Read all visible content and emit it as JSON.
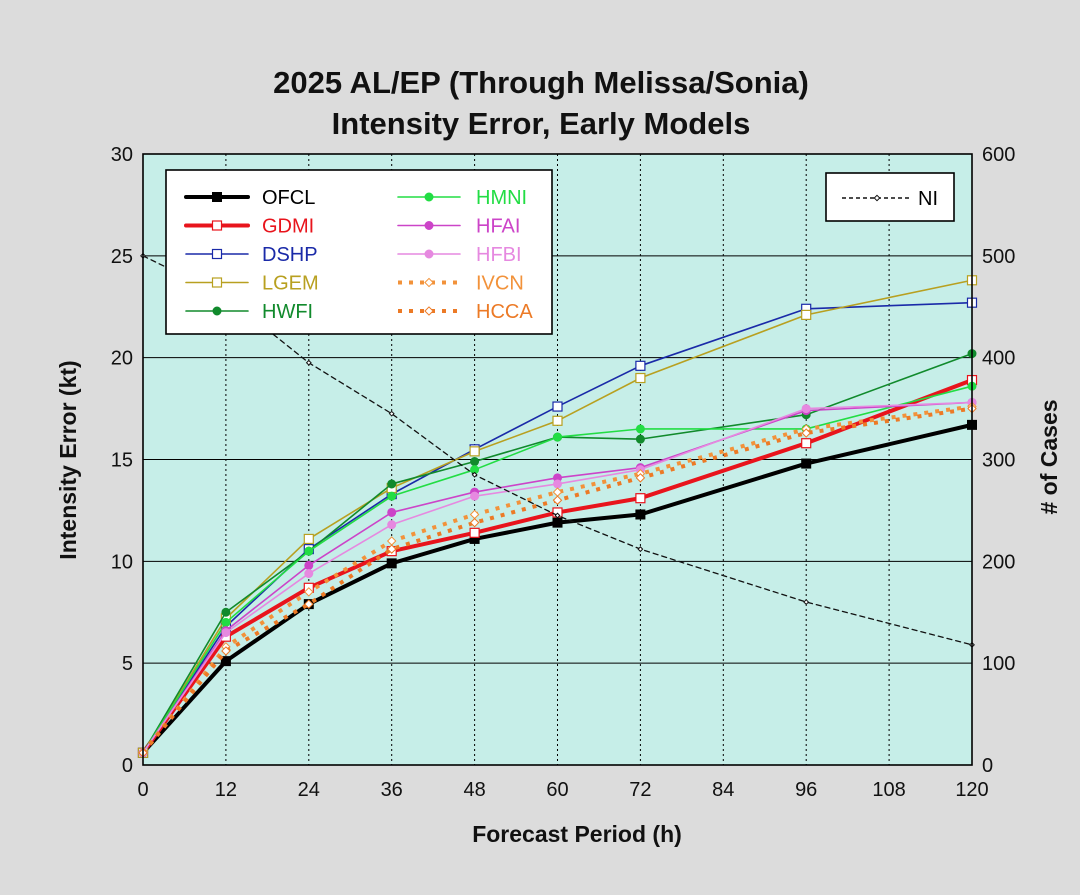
{
  "chart_data": {
    "type": "line",
    "title": "2025 AL/EP (Through Melissa/Sonia)",
    "subtitle": "Intensity Error, Early Models",
    "xlabel": "Forecast Period (h)",
    "ylabel": "Intensity Error (kt)",
    "y2label": "# of Cases",
    "x": [
      0,
      12,
      24,
      36,
      48,
      60,
      72,
      96,
      120
    ],
    "xticks": [
      "0",
      "12",
      "24",
      "36",
      "48",
      "60",
      "72",
      "84",
      "96",
      "108",
      "120"
    ],
    "xlim": [
      0,
      120
    ],
    "ylim": [
      0,
      30
    ],
    "yticks": [
      "0",
      "5",
      "10",
      "15",
      "20",
      "25",
      "30"
    ],
    "y2lim": [
      0,
      600
    ],
    "y2ticks": [
      "0",
      "100",
      "200",
      "300",
      "400",
      "500",
      "600"
    ],
    "grid": true,
    "legend_position": "top-left",
    "series": [
      {
        "name": "OFCL",
        "color": "#000000",
        "style": "solid",
        "width": 4,
        "marker": "square-filled",
        "values": [
          0.6,
          5.1,
          7.9,
          9.9,
          11.1,
          11.9,
          12.3,
          14.8,
          16.7
        ]
      },
      {
        "name": "GDMI",
        "color": "#e8141c",
        "style": "solid",
        "width": 4,
        "marker": "square-open",
        "values": [
          0.6,
          6.3,
          8.7,
          10.5,
          11.4,
          12.4,
          13.1,
          15.8,
          18.9
        ]
      },
      {
        "name": "DSHP",
        "color": "#1a2aa8",
        "style": "solid",
        "width": 1.6,
        "marker": "square-open",
        "values": [
          0.6,
          6.8,
          10.6,
          13.3,
          15.5,
          17.6,
          19.6,
          22.4,
          22.7
        ]
      },
      {
        "name": "LGEM",
        "color": "#b8a020",
        "style": "solid",
        "width": 1.6,
        "marker": "square-open",
        "values": [
          0.6,
          7.2,
          11.1,
          13.6,
          15.4,
          16.9,
          19.0,
          22.1,
          23.8
        ]
      },
      {
        "name": "HWFI",
        "color": "#118a2c",
        "style": "solid",
        "width": 1.6,
        "marker": "circle-filled",
        "values": [
          0.6,
          7.5,
          10.5,
          13.8,
          14.9,
          16.1,
          16.0,
          17.2,
          20.2
        ]
      },
      {
        "name": "HMNI",
        "color": "#22dd44",
        "style": "solid",
        "width": 1.6,
        "marker": "circle-filled",
        "values": [
          0.6,
          7.0,
          10.5,
          13.2,
          14.5,
          16.1,
          16.5,
          16.5,
          18.6
        ]
      },
      {
        "name": "HFAI",
        "color": "#cc44c8",
        "style": "solid",
        "width": 1.6,
        "marker": "circle-filled",
        "values": [
          0.6,
          6.6,
          9.8,
          12.4,
          13.4,
          14.1,
          14.6,
          17.4,
          17.8
        ]
      },
      {
        "name": "HFBI",
        "color": "#e689e0",
        "style": "solid",
        "width": 1.6,
        "marker": "circle-filled",
        "values": [
          0.6,
          6.5,
          9.4,
          11.8,
          13.2,
          13.8,
          14.5,
          17.5,
          17.8
        ]
      },
      {
        "name": "IVCN",
        "color": "#f2923a",
        "style": "dotted",
        "width": 4,
        "marker": "diamond-open",
        "values": [
          0.6,
          5.8,
          8.5,
          11.0,
          12.3,
          13.4,
          14.3,
          16.5,
          17.6
        ]
      },
      {
        "name": "HCCA",
        "color": "#ec7a26",
        "style": "dotted",
        "width": 4,
        "marker": "diamond-open",
        "values": [
          0.6,
          5.6,
          7.9,
          10.6,
          11.9,
          13.0,
          14.1,
          16.3,
          17.5
        ]
      },
      {
        "name": "NI",
        "color": "#111111",
        "style": "dashed",
        "width": 1.3,
        "marker": "diamond-open",
        "axis": "right",
        "values": [
          500,
          460,
          395,
          345,
          285,
          245,
          212,
          160,
          118
        ]
      }
    ]
  }
}
